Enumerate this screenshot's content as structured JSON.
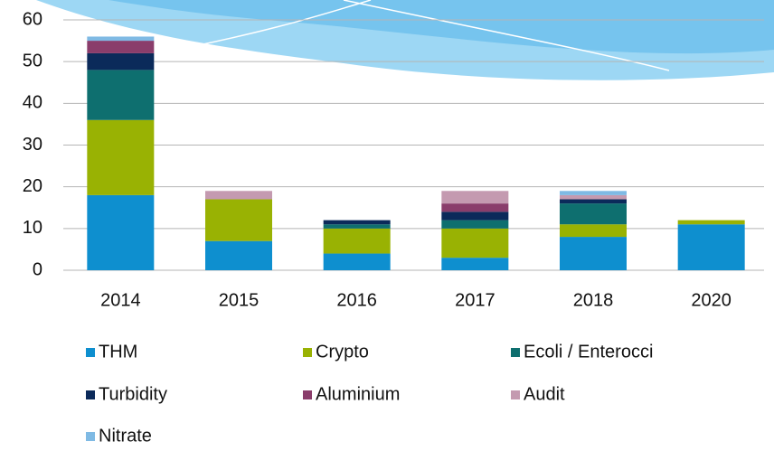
{
  "chart_data": {
    "type": "stacked_bar",
    "categories": [
      "2014",
      "2015",
      "2016",
      "2017",
      "2018",
      "2020"
    ],
    "series": [
      {
        "name": "THM",
        "color": "#0e8fcf",
        "values": [
          18,
          7,
          4,
          3,
          8,
          11
        ]
      },
      {
        "name": "Crypto",
        "color": "#99b203",
        "values": [
          18,
          10,
          6,
          7,
          3,
          1
        ]
      },
      {
        "name": "Ecoli / Enterocci",
        "color": "#0e6f6f",
        "values": [
          12,
          0,
          1,
          2,
          5,
          0
        ]
      },
      {
        "name": "Turbidity",
        "color": "#0b2a5a",
        "values": [
          4,
          0,
          1,
          2,
          1,
          0
        ]
      },
      {
        "name": "Aluminium",
        "color": "#8a3d6b",
        "values": [
          3,
          0,
          0,
          2,
          0,
          0
        ]
      },
      {
        "name": "Audit",
        "color": "#c49ab0",
        "values": [
          0,
          2,
          0,
          3,
          1,
          0
        ]
      },
      {
        "name": "Nitrate",
        "color": "#7fbae4",
        "values": [
          1,
          0,
          0,
          0,
          1,
          0
        ]
      }
    ],
    "ylim": [
      0,
      60
    ],
    "yticks": [
      0,
      10,
      20,
      30,
      40,
      50,
      60
    ],
    "grid": true,
    "legend": "bottom"
  }
}
